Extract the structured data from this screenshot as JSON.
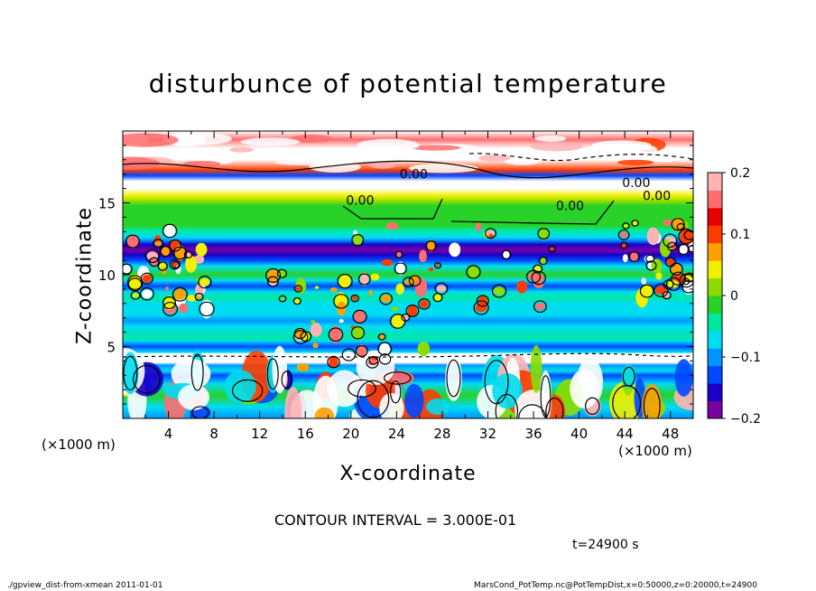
{
  "chart_data": {
    "type": "heatmap",
    "title": "disturbunce of potential temperature",
    "xlabel": "X-coordinate",
    "ylabel": "Z-coordinate",
    "x_unit": "(×1000 m)",
    "xlim": [
      0,
      50
    ],
    "ylim": [
      0,
      20
    ],
    "x_ticks": [
      4,
      8,
      12,
      16,
      20,
      24,
      28,
      32,
      36,
      40,
      44,
      48
    ],
    "y_ticks": [
      5,
      10,
      15
    ],
    "colorbar": {
      "range": [
        -0.2,
        0.2
      ],
      "tick_values": [
        0.2,
        0.1,
        0,
        -0.1,
        -0.2
      ],
      "tick_labels": [
        "0.2",
        "0.1",
        "0",
        "−0.1",
        "−0.2"
      ],
      "colors": [
        "#7a00a0",
        "#1a00c8",
        "#0048ff",
        "#0096ff",
        "#00dcf0",
        "#00e8a0",
        "#28d228",
        "#8cdc00",
        "#f0f000",
        "#ffa000",
        "#ff3c00",
        "#e60000",
        "#ff6e6e",
        "#ffb4b4"
      ]
    },
    "contour_labels": [
      {
        "text": "0.00",
        "x": 25.5,
        "z": 17.0
      },
      {
        "text": "0.00",
        "x": 20.8,
        "z": 15.2
      },
      {
        "text": "0.00",
        "x": 39.2,
        "z": 14.8
      },
      {
        "text": "0.00",
        "x": 45.0,
        "z": 16.4
      },
      {
        "text": "0.00",
        "x": 46.8,
        "z": 15.5
      }
    ],
    "annotations": {
      "contour_interval": "CONTOUR INTERVAL = 3.000E-01",
      "time": "t=24900 s"
    }
  },
  "footer": {
    "left": "./gpview_dist-from-xmean  2011-01-01",
    "right": "MarsCond_PotTemp.nc@PotTempDist,x=0:50000,z=0:20000,t=24900"
  }
}
